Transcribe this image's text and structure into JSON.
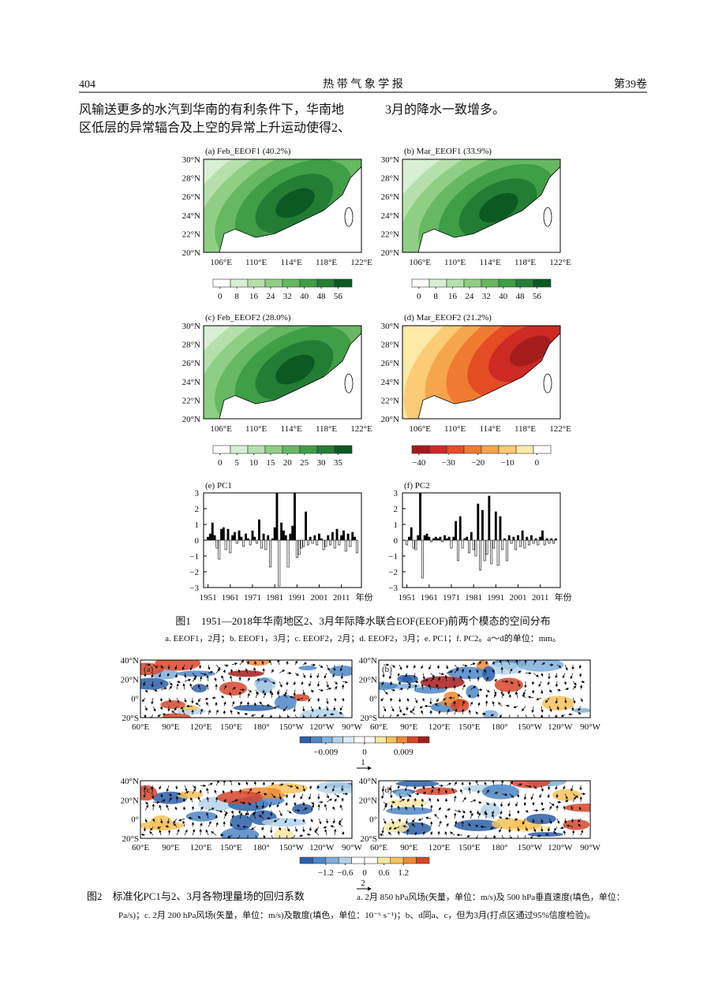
{
  "header": {
    "page": "404",
    "journal": "热 带 气 象 学 报",
    "volume": "第39卷"
  },
  "body": {
    "left": [
      "风输送更多的水汽到华南的有利条件下，华南地",
      "区低层的异常辐合及上空的异常上升运动使得2、"
    ],
    "right": [
      "3月的降水一致增多。"
    ]
  },
  "figure1": {
    "lat_labels": [
      "30°N",
      "28°N",
      "26°N",
      "24°N",
      "22°N",
      "20°N"
    ],
    "lon_labels": [
      "106°E",
      "110°E",
      "114°E",
      "118°E",
      "122°E"
    ],
    "maps": [
      {
        "title": "(a) Feb_EEOF1 (40.2%)",
        "colorbar": {
          "colors": [
            "#ffffff",
            "#d7efd2",
            "#b5e0ac",
            "#8fce85",
            "#66b862",
            "#3f9e46",
            "#237d35",
            "#0b5a22"
          ],
          "ticks": [
            0,
            8,
            16,
            24,
            32,
            40,
            48,
            56
          ]
        }
      },
      {
        "title": "(b) Mar_EEOF1 (33.9%)",
        "colorbar": {
          "colors": [
            "#ffffff",
            "#d7efd2",
            "#b5e0ac",
            "#8fce85",
            "#66b862",
            "#3f9e46",
            "#237d35",
            "#0b5a22"
          ],
          "ticks": [
            0,
            8,
            16,
            24,
            32,
            40,
            48,
            56
          ]
        }
      },
      {
        "title": "(c) Feb_EEOF2 (28.0%)",
        "colorbar": {
          "colors": [
            "#ffffff",
            "#d7efd2",
            "#b5e0ac",
            "#8fce85",
            "#66b862",
            "#3f9e46",
            "#237d35",
            "#0b5a22"
          ],
          "ticks": [
            0,
            5,
            10,
            15,
            20,
            25,
            30,
            35
          ]
        }
      },
      {
        "title": "(d) Mar_EEOF2 (21.2%)",
        "colorbar": {
          "colors": [
            "#a51c1c",
            "#cc2a22",
            "#e44c26",
            "#f07a32",
            "#f7a54c",
            "#fbcb75",
            "#fde9a8",
            "#ffffff"
          ],
          "ticks": [
            {
              "value": -40,
              "label": "−40"
            },
            {
              "value": -30,
              "label": "−30"
            },
            {
              "value": -20,
              "label": "−20"
            },
            {
              "value": -10,
              "label": "−10"
            },
            0
          ]
        }
      }
    ],
    "pc": {
      "type": "bar",
      "xlim": [
        1949,
        2020
      ],
      "xticks": [
        1951,
        1961,
        1971,
        1981,
        1991,
        2001,
        2011
      ],
      "xlabel": "年份",
      "ylim": [
        -3,
        3
      ],
      "yticks": [
        3,
        2,
        1,
        0,
        {
          "value": -1,
          "label": "−1"
        },
        {
          "value": -2,
          "label": "−2"
        },
        {
          "value": -3,
          "label": "−3"
        }
      ],
      "pos_color": "#000000",
      "neg_color": "#ffffff",
      "x": [
        1951,
        1952,
        1953,
        1954,
        1955,
        1956,
        1957,
        1958,
        1959,
        1960,
        1961,
        1962,
        1963,
        1964,
        1965,
        1966,
        1967,
        1968,
        1969,
        1970,
        1971,
        1972,
        1973,
        1974,
        1975,
        1976,
        1977,
        1978,
        1979,
        1980,
        1981,
        1982,
        1983,
        1984,
        1985,
        1986,
        1987,
        1988,
        1989,
        1990,
        1991,
        1992,
        1993,
        1994,
        1995,
        1996,
        1997,
        1998,
        1999,
        2000,
        2001,
        2002,
        2003,
        2004,
        2005,
        2006,
        2007,
        2008,
        2009,
        2010,
        2011,
        2012,
        2013,
        2014,
        2015,
        2016,
        2017,
        2018
      ],
      "panels": [
        {
          "title": "(e) PC1",
          "values": [
            0.2,
            0.4,
            1.1,
            0.3,
            -0.5,
            -1.2,
            0.7,
            0.8,
            -0.6,
            0.7,
            -0.8,
            0.3,
            0.5,
            -0.2,
            0.6,
            0.2,
            -0.4,
            0.4,
            0.1,
            -0.3,
            0.6,
            0.2,
            -0.2,
            1.3,
            -0.5,
            0.4,
            -0.6,
            0.3,
            -1.7,
            0.1,
            0.8,
            3.0,
            -2.9,
            1.1,
            0.6,
            0.3,
            -1.7,
            0.4,
            0.9,
            3.0,
            -1.1,
            -0.9,
            -0.5,
            -0.4,
            1.8,
            -0.3,
            0.2,
            -0.2,
            0.3,
            -0.3,
            0.4,
            0.1,
            -0.6,
            -0.4,
            0.3,
            -0.3,
            0.5,
            -0.5,
            0.7,
            -0.3,
            0.3,
            0.6,
            -0.7,
            0.4,
            -0.4,
            0.5,
            0.2,
            -0.8
          ]
        },
        {
          "title": "(f) PC2",
          "values": [
            -0.3,
            0.2,
            0.8,
            -0.5,
            -0.6,
            0.3,
            3.0,
            -2.4,
            0.3,
            0.4,
            0.2,
            -0.1,
            0.1,
            0.2,
            0.1,
            0.2,
            -0.1,
            0.3,
            0.1,
            0.2,
            -0.5,
            0.2,
            1.2,
            -1.3,
            1.5,
            -0.5,
            0.1,
            0.2,
            -0.8,
            0.5,
            -0.6,
            -1.0,
            2.3,
            -1.9,
            1.9,
            -1.3,
            -0.9,
            2.8,
            -1.5,
            -0.5,
            1.8,
            -1.6,
            1.5,
            -0.6,
            0.1,
            -1.3,
            0.3,
            -0.2,
            0.2,
            -0.6,
            0.3,
            -0.4,
            0.6,
            -0.5,
            0.2,
            -0.3,
            0.3,
            -0.2,
            0.1,
            -0.3,
            0.2,
            0.6,
            -0.3,
            0.1,
            -0.2,
            0.1,
            -0.2,
            0.1
          ]
        }
      ]
    },
    "caption": "图1　1951—2018年华南地区2、3月年际降水联合EOF(EEOF)前两个模态的空间分布",
    "subcaption": "a. EEOF1，2月；b. EEOF1，3月；c. EEOF2，2月；d. EEOF2，3月；e. PC1；f. PC2。a～d的单位：mm。"
  },
  "figure2": {
    "lat_labels": [
      "40°N",
      "20°N",
      "0°",
      "20°S"
    ],
    "lon_labels": [
      "60°E",
      "90°E",
      "120°E",
      "150°E",
      "180°",
      "150°W",
      "120°W",
      "90°W"
    ],
    "rows": [
      {
        "panels": [
          "(a)",
          "(b)"
        ],
        "colorbar": {
          "colors": [
            "#2c5fa8",
            "#4f86c6",
            "#7fb0da",
            "#b3d3ea",
            "#dcecf6",
            "#ffffff",
            "#ffffff",
            "#fde8a0",
            "#f8c25a",
            "#ef8a35",
            "#d8452a",
            "#a61c1c"
          ],
          "ticks": [
            {
              "value": -0.009,
              "label": "−0.009"
            },
            0,
            0.009
          ]
        },
        "ref_vector": "1"
      },
      {
        "panels": [
          "(c)",
          "(d)"
        ],
        "colorbar": {
          "colors": [
            "#2c5fa8",
            "#4f86c6",
            "#7fb0da",
            "#b3d3ea",
            "#ffffff",
            "#ffffff",
            "#fde8a0",
            "#f8c25a",
            "#ef8a35",
            "#d8452a"
          ],
          "ticks": [
            {
              "value": -1.2,
              "label": "−1.2"
            },
            {
              "value": -0.6,
              "label": "−0.6"
            },
            0,
            0.6,
            1.2
          ]
        },
        "ref_vector": "2"
      }
    ],
    "caption": [
      "图2　标准化PC1与2、3月各物理量场的回归系数",
      "a. 2月 850 hPa风场(矢量，单位：m/s)及 500 hPa垂直速度(填色，单位：",
      "Pa/s)；c. 2月 200 hPa风场(矢量，单位：m/s)及散度(填色，单位：10⁻⁶ s⁻¹)；b、d同a、c，但为3月(打点区通过95%信度检验)。"
    ]
  }
}
